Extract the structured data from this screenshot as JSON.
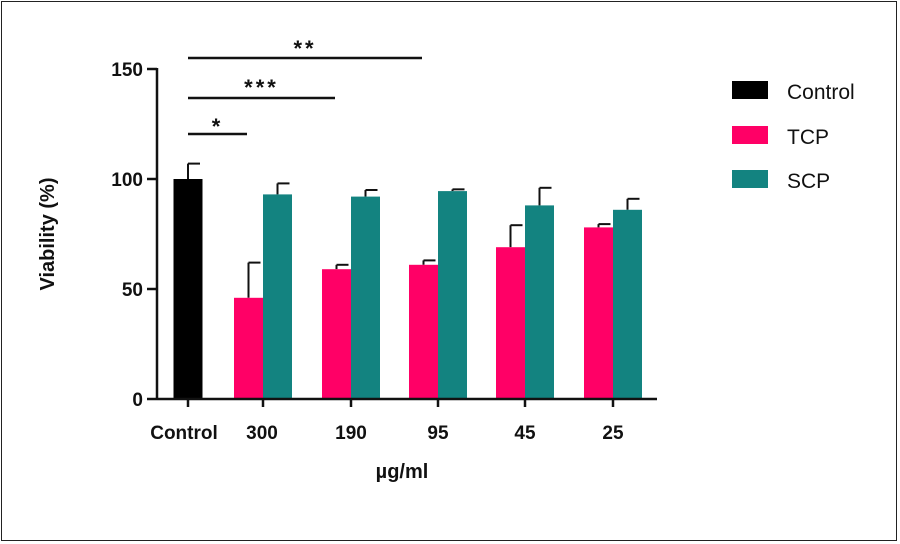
{
  "chart_data": {
    "type": "bar",
    "title": "",
    "xlabel": "µg/ml",
    "ylabel": "Viability (%)",
    "ylim": [
      0,
      150
    ],
    "yticks": [
      0,
      50,
      100,
      150
    ],
    "categories": [
      "Control",
      "300",
      "190",
      "95",
      "45",
      "25"
    ],
    "series": [
      {
        "name": "Control",
        "color": "#000000",
        "values": [
          100,
          null,
          null,
          null,
          null,
          null
        ],
        "errors": [
          7,
          null,
          null,
          null,
          null,
          null
        ]
      },
      {
        "name": "TCP",
        "color": "#ff0066",
        "values": [
          null,
          46,
          59,
          61,
          69,
          78
        ],
        "errors": [
          null,
          16,
          2,
          2,
          10,
          1.5
        ]
      },
      {
        "name": "SCP",
        "color": "#138380",
        "values": [
          null,
          93,
          92,
          94.5,
          88,
          86
        ],
        "errors": [
          null,
          5,
          3,
          0.8,
          8,
          5
        ]
      }
    ],
    "significance": [
      {
        "from": "Control",
        "to": "300",
        "label": "*"
      },
      {
        "from": "Control",
        "to": "190",
        "label": "***"
      },
      {
        "from": "Control",
        "to": "95",
        "label": "**"
      }
    ],
    "legend": {
      "position": "right"
    },
    "grid": false
  }
}
